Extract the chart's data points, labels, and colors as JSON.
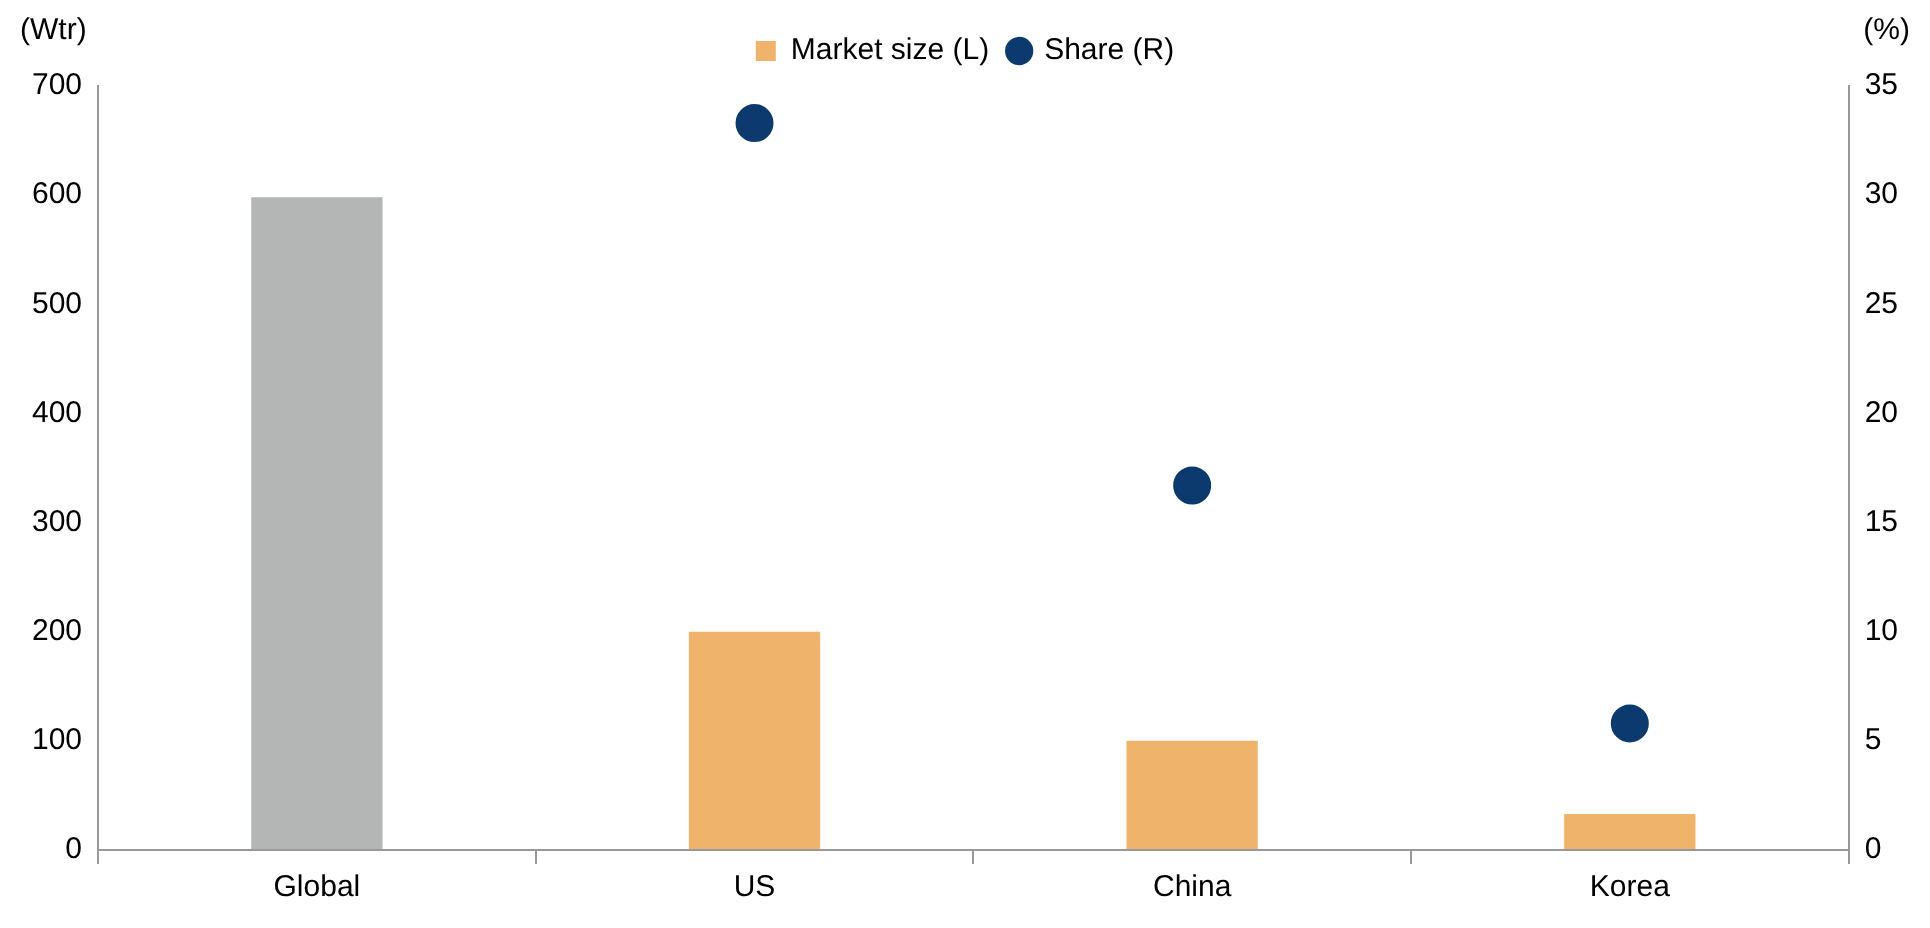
{
  "chart_data": {
    "type": "bar",
    "categories": [
      "Global",
      "US",
      "China",
      "Korea"
    ],
    "ylabel": "(Wtr)",
    "y2label": "(%)",
    "series": [
      {
        "name": "Market size (L)",
        "color": "#f0b36b",
        "colors": [
          "#b3b6b5",
          "#f0b36b",
          "#f0b36b",
          "#f0b36b"
        ],
        "values": [
          598,
          200,
          100,
          33
        ]
      },
      {
        "name": "Share (R)",
        "type": "scatter",
        "axis": "y2",
        "color": "#0d3a6e",
        "values": [
          null,
          33.3,
          16.7,
          5.8
        ]
      }
    ],
    "ylim": [
      0,
      700
    ],
    "yticks": [
      0,
      100,
      200,
      300,
      400,
      500,
      600,
      700
    ],
    "y2lim": [
      0,
      35
    ],
    "y2ticks": [
      0,
      5,
      10,
      15,
      20,
      25,
      30,
      35
    ],
    "grid": false,
    "legend": "top",
    "marker": "circle"
  }
}
